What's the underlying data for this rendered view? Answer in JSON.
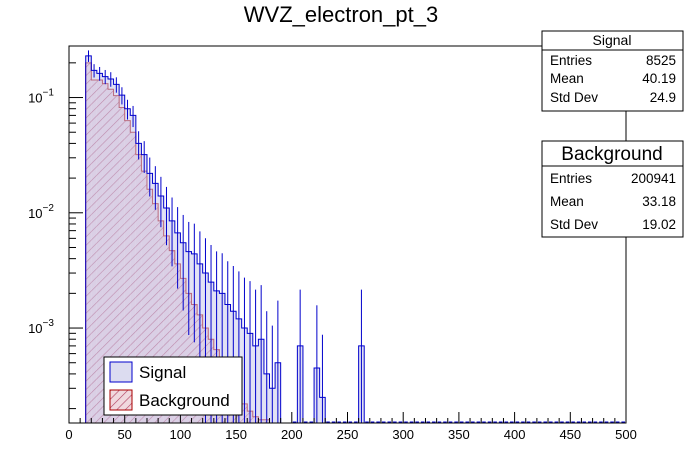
{
  "chart_data": {
    "type": "histogram",
    "title": "WVZ_electron_pt_3",
    "xlim": [
      0,
      500
    ],
    "ylim": [
      0.00015,
      0.28
    ],
    "y_scale": "log",
    "bin_width": 5,
    "x_ticks": [
      "0",
      "50",
      "100",
      "150",
      "200",
      "250",
      "300",
      "350",
      "400",
      "450",
      "500"
    ],
    "series": [
      {
        "name": "Signal",
        "line_color": "#0000cc",
        "fill_color": "#dcdcf0",
        "values": [
          0,
          0,
          0,
          0.23,
          0.172,
          0.162,
          0.152,
          0.145,
          0.13,
          0.105,
          0.08,
          0.07,
          0.04,
          0.032,
          0.022,
          0.018,
          0.014,
          0.011,
          0.0085,
          0.0067,
          0.0055,
          0.0046,
          0.0044,
          0.0036,
          0.003,
          0.0025,
          0.0021,
          0.002,
          0.0016,
          0.0014,
          0.0012,
          0.001,
          0.0009,
          0.0007,
          0.0008,
          0.0004,
          0.0003,
          0.0005,
          0,
          0,
          0,
          0.0007,
          0,
          0,
          0.00045,
          0.00025,
          0,
          0,
          0,
          0,
          0,
          0,
          0.0007,
          0,
          0,
          0,
          0,
          0,
          0,
          0,
          0,
          0,
          0,
          0,
          0,
          0,
          0,
          0,
          0,
          0,
          0,
          0,
          0,
          0,
          0,
          0,
          0,
          0,
          0,
          0,
          0,
          0,
          0,
          0,
          0,
          0,
          0,
          0,
          0,
          0,
          0,
          0,
          0,
          0,
          0,
          0,
          0,
          0,
          0,
          0
        ],
        "stats": {
          "header": "Signal",
          "entries_label": "Entries",
          "entries": "8525",
          "mean_label": "Mean",
          "mean": "40.19",
          "stddev_label": "Std Dev",
          "stddev": "24.9"
        }
      },
      {
        "name": "Background",
        "line_color": "#aa0000",
        "fill_color": "#e8c8d0",
        "values": [
          0,
          0,
          0,
          0.2,
          0.142,
          0.142,
          0.132,
          0.118,
          0.104,
          0.082,
          0.063,
          0.05,
          0.032,
          0.023,
          0.016,
          0.012,
          0.0085,
          0.0063,
          0.0047,
          0.0036,
          0.0027,
          0.002,
          0.0016,
          0.0013,
          0.001,
          0.0008,
          0.00065,
          0.0005,
          0.0004,
          0.00035,
          0.00028,
          0.00022,
          0.00019,
          0.00017,
          0.00016,
          0.00016,
          0,
          0,
          0,
          0,
          0,
          0,
          0,
          0,
          0,
          0,
          0,
          0,
          0,
          0,
          0,
          0,
          0,
          0,
          0,
          0,
          0,
          0,
          0,
          0,
          0,
          0,
          0,
          0,
          0,
          0,
          0,
          0,
          0,
          0,
          0,
          0,
          0,
          0,
          0,
          0,
          0,
          0,
          0,
          0,
          0,
          0,
          0,
          0,
          0,
          0,
          0,
          0,
          0,
          0,
          0,
          0,
          0,
          0,
          0,
          0,
          0,
          0,
          0,
          0
        ],
        "stats": {
          "header": "Background",
          "entries_label": "Entries",
          "entries": "200941",
          "mean_label": "Mean",
          "mean": "33.18",
          "stddev_label": "Std Dev",
          "stddev": "19.02"
        }
      }
    ],
    "legend": {
      "position": "bottom-left",
      "entries": [
        "Signal",
        "Background"
      ]
    }
  }
}
